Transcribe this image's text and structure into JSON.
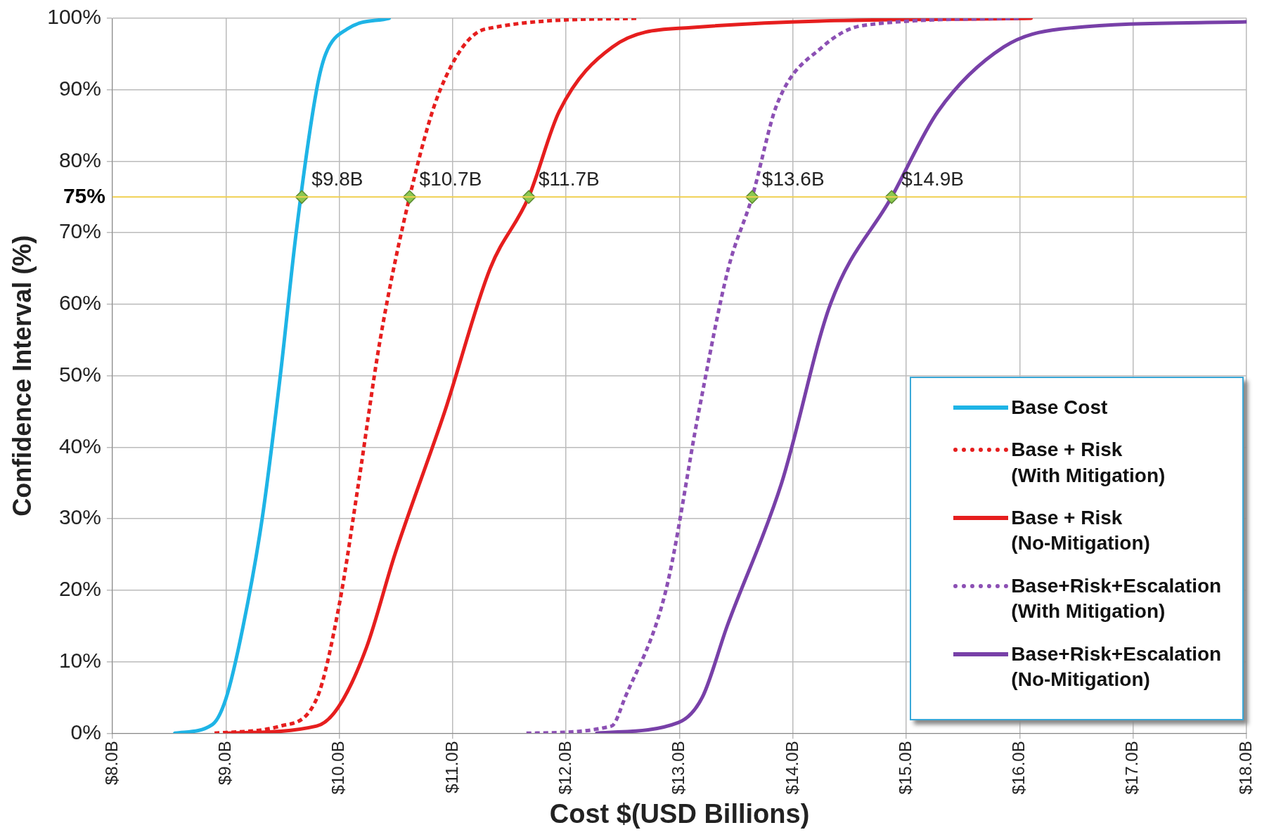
{
  "chart_data": {
    "type": "line",
    "xlabel": "Cost $(USD Billions)",
    "ylabel": "Confidence Interval (%)",
    "xlim": [
      8,
      18
    ],
    "xticks": [
      {
        "value": 8,
        "label": "$8.0B"
      },
      {
        "value": 9,
        "label": "$9.0B"
      },
      {
        "value": 10,
        "label": "$10.0B"
      },
      {
        "value": 11,
        "label": "$11.0B"
      },
      {
        "value": 12,
        "label": "$12.0B"
      },
      {
        "value": 13,
        "label": "$13.0B"
      },
      {
        "value": 14,
        "label": "$14.0B"
      },
      {
        "value": 15,
        "label": "$15.0B"
      },
      {
        "value": 16,
        "label": "$16.0B"
      },
      {
        "value": 17,
        "label": "$17.0B"
      },
      {
        "value": 18,
        "label": "$18.0B"
      }
    ],
    "ylim": [
      0,
      100
    ],
    "yticks": [
      {
        "value": 0,
        "label": "0%"
      },
      {
        "value": 10,
        "label": "10%"
      },
      {
        "value": 20,
        "label": "20%"
      },
      {
        "value": 30,
        "label": "30%"
      },
      {
        "value": 40,
        "label": "40%"
      },
      {
        "value": 50,
        "label": "50%"
      },
      {
        "value": 60,
        "label": "60%"
      },
      {
        "value": 70,
        "label": "70%"
      },
      {
        "value": 80,
        "label": "80%"
      },
      {
        "value": 90,
        "label": "90%"
      },
      {
        "value": 100,
        "label": "100%"
      }
    ],
    "grid": true,
    "legend": "bottom right",
    "marker": "none",
    "series": [
      {
        "name": "Base Cost",
        "color": "#1eb4e6",
        "line_style": "solid",
        "x": [
          8.55,
          8.88,
          9.0,
          9.15,
          9.32,
          9.48,
          9.62,
          9.8,
          9.88,
          10.07,
          10.44
        ],
        "values": [
          0,
          1.2,
          4.8,
          14.8,
          30,
          50,
          70,
          90,
          95,
          98.5,
          100
        ]
      },
      {
        "name": "Base + Risk\n(With Mitigation)",
        "color": "#e61e1e",
        "line_style": "dotted",
        "x": [
          8.9,
          9.48,
          9.8,
          10.0,
          10.17,
          10.36,
          10.62,
          10.89,
          11.29,
          12.65
        ],
        "values": [
          0,
          1,
          4.8,
          18,
          35,
          55,
          75,
          90,
          98.5,
          100
        ]
      },
      {
        "name": "Base + Risk\n(No-Mitigation)",
        "color": "#e61e1e",
        "line_style": "solid",
        "x": [
          9.0,
          9.8,
          9.99,
          10.24,
          10.49,
          10.93,
          11.33,
          11.67,
          11.94,
          12.41,
          13.1,
          16.1
        ],
        "values": [
          0,
          1,
          3.6,
          12,
          25,
          45,
          65,
          75,
          87,
          96,
          98.7,
          100
        ]
      },
      {
        "name": "Base+Risk+Escalation\n(With Mitigation)",
        "color": "#8c50b4",
        "line_style": "dotted",
        "x": [
          11.65,
          12.4,
          12.52,
          12.88,
          13.17,
          13.43,
          13.64,
          13.86,
          14.26,
          14.62,
          16.0
        ],
        "values": [
          0,
          1,
          5,
          20,
          45,
          65,
          75,
          88,
          96,
          99,
          100
        ]
      },
      {
        "name": "Base+Risk+Escalation\n(No-Mitigation)",
        "color": "#7840a8",
        "line_style": "solid",
        "x": [
          12.27,
          12.99,
          13.2,
          13.42,
          13.9,
          14.33,
          14.87,
          15.28,
          15.86,
          16.36,
          18.0
        ],
        "values": [
          0,
          1.5,
          5,
          15,
          35,
          60,
          75,
          87,
          96,
          98.5,
          99.5
        ]
      },
      {
        "type": "scatter",
        "marker": "diamond",
        "color": "#8cc850",
        "x": [
          9.67,
          10.62,
          11.67,
          13.64,
          14.87
        ],
        "values": [
          75,
          75,
          75,
          75,
          75
        ]
      }
    ],
    "ref_lines": [
      {
        "axis": "y",
        "value": 75,
        "label": "75%",
        "color": "#f0d050"
      }
    ],
    "annotations": [
      {
        "text": "$9.8B",
        "x": 9.67,
        "y": 75
      },
      {
        "text": "$10.7B",
        "x": 10.62,
        "y": 75
      },
      {
        "text": "$11.7B",
        "x": 11.67,
        "y": 75
      },
      {
        "text": "$13.6B",
        "x": 13.64,
        "y": 75
      },
      {
        "text": "$14.9B",
        "x": 14.87,
        "y": 75
      }
    ]
  }
}
